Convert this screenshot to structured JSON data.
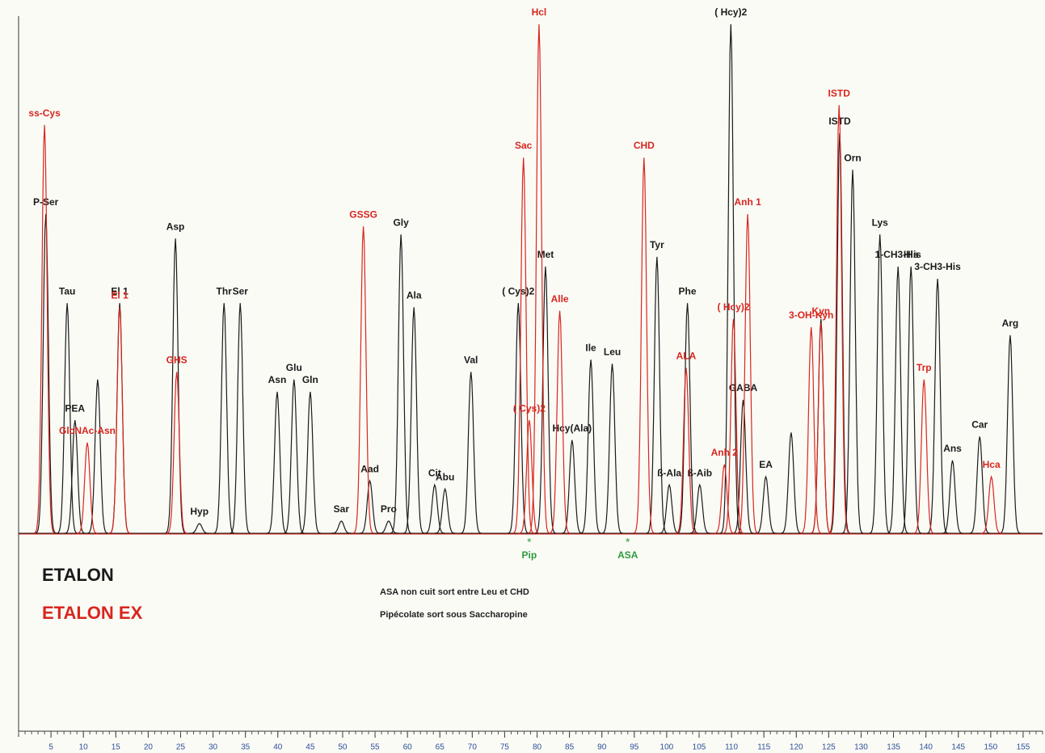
{
  "chart_data": {
    "type": "line",
    "xlim": [
      0,
      158
    ],
    "ylim": [
      0,
      100
    ],
    "xticks": [
      5,
      10,
      15,
      20,
      25,
      30,
      35,
      40,
      45,
      50,
      55,
      60,
      65,
      70,
      75,
      80,
      85,
      90,
      95,
      100,
      105,
      110,
      115,
      120,
      125,
      130,
      135,
      140,
      145,
      150,
      155
    ],
    "series": [
      {
        "name": "ETALON",
        "color": "#1a1a1a",
        "x": [
          4.2,
          7.5,
          8.7,
          12.2,
          15.6,
          24.2,
          27.9,
          31.7,
          34.2,
          39.9,
          42.5,
          45.0,
          49.8,
          54.2,
          57.1,
          59.0,
          61.0,
          64.2,
          65.8,
          69.8,
          77.1,
          81.3,
          85.4,
          88.3,
          91.6,
          98.5,
          100.4,
          103.2,
          105.1,
          109.9,
          111.8,
          115.3,
          119.2,
          123.8,
          126.7,
          128.7,
          132.9,
          135.7,
          137.7,
          141.8,
          144.1,
          148.3,
          153.0
        ],
        "values": [
          62.7,
          45.2,
          22.2,
          30.2,
          45.2,
          57.9,
          1.9,
          45.2,
          45.2,
          27.8,
          30.2,
          27.8,
          2.4,
          10.3,
          2.4,
          58.7,
          44.4,
          9.5,
          8.7,
          31.7,
          45.2,
          52.4,
          18.3,
          34.1,
          33.3,
          54.3,
          9.5,
          45.2,
          9.5,
          100,
          26.2,
          11.1,
          19.8,
          42.1,
          78.6,
          71.4,
          58.7,
          52.4,
          52.4,
          50.0,
          14.3,
          19.0,
          38.9
        ],
        "labels": [
          "P-Ser",
          "Tau",
          "PEA",
          null,
          "El 1",
          "Asp",
          "Hyp",
          "Thr",
          "Ser",
          "Asn",
          "Glu",
          "Gln",
          "Sar",
          "Aad",
          "Pro",
          "Gly",
          "Ala",
          "Cit",
          "Abu",
          "Val",
          "( Cys)2",
          "Met",
          "Hcy(Ala)",
          "Ile",
          "Leu",
          "Tyr",
          "ß-Ala",
          "Phe",
          "ß-Aib",
          "( Hcy)2",
          "GABA",
          "EA",
          null,
          null,
          "ISTD",
          "Orn",
          "Lys",
          "1-CH3-His",
          "His",
          "3-CH3-His",
          "Ans",
          "Car",
          "Arg"
        ]
      },
      {
        "name": "ETALON EX",
        "color": "#d8261e",
        "x": [
          4.0,
          10.6,
          15.6,
          24.4,
          53.2,
          77.9,
          78.8,
          80.3,
          83.5,
          96.5,
          103.0,
          108.9,
          110.3,
          112.5,
          122.3,
          123.8,
          126.6,
          139.7,
          150.1
        ],
        "values": [
          80.2,
          17.8,
          44.4,
          31.7,
          60.3,
          73.8,
          22.2,
          100,
          43.7,
          73.8,
          32.5,
          13.5,
          42.1,
          62.7,
          40.5,
          41.3,
          84.1,
          30.2,
          11.1
        ],
        "labels": [
          "ss-Cys",
          "GlcNAc-Asn",
          "El 1",
          "GHS",
          "GSSG",
          "Sac",
          "( Cys)2",
          "Hcl",
          "Alle",
          "CHD",
          "ALA",
          "Anh 2",
          "( Hcy)2",
          "Anh 1",
          "3-OH-Kyn",
          "Kyn",
          "ISTD",
          "Trp",
          "Hca"
        ]
      }
    ],
    "markers": [
      {
        "label": "Pip",
        "x": 78.8,
        "color": "#2e9b3c"
      },
      {
        "label": "ASA",
        "x": 94.0,
        "color": "#2e9b3c"
      }
    ],
    "notes": [
      "ASA non cuit sort entre Leu et CHD",
      "Pipécolate sort sous Saccharopine"
    ]
  }
}
